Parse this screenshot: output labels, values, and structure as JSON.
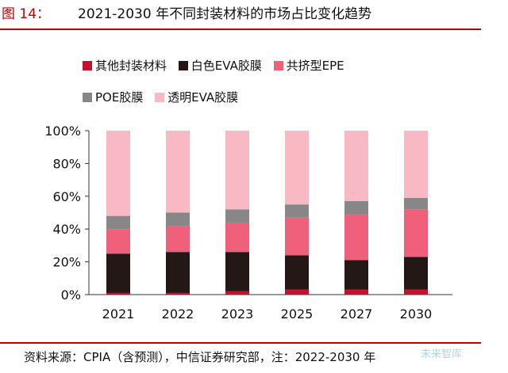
{
  "header": {
    "figure_label": "图 14：",
    "title": "2021-2030 年不同封装材料的市场占比变化趋势"
  },
  "footer": {
    "source": "资料来源：CPIA（含预测），中信证券研究部，注：2022-2030 年",
    "watermark": "未来智库"
  },
  "chart_data": {
    "type": "bar",
    "stacked": true,
    "title": "2021-2030 年不同封装材料的市场占比变化趋势",
    "categories": [
      "2021",
      "2022",
      "2023",
      "2025",
      "2027",
      "2030"
    ],
    "ylim": [
      0,
      100
    ],
    "yticks": [
      "0%",
      "20%",
      "40%",
      "60%",
      "80%",
      "100%"
    ],
    "grid": false,
    "legend_position": "top",
    "series": [
      {
        "name": "其他封装材料",
        "color": "#c8102e",
        "values": [
          1,
          1,
          2,
          3,
          3,
          3
        ]
      },
      {
        "name": "白色EVA胶膜",
        "color": "#231815",
        "values": [
          24,
          25,
          24,
          21,
          18,
          20
        ]
      },
      {
        "name": "共挤型EPE",
        "color": "#f0607a",
        "values": [
          15,
          16,
          18,
          23,
          28,
          29
        ]
      },
      {
        "name": "POE胶膜",
        "color": "#878787",
        "values": [
          8,
          8,
          8,
          8,
          8,
          7
        ]
      },
      {
        "name": "透明EVA胶膜",
        "color": "#f8b8c4",
        "values": [
          52,
          50,
          48,
          45,
          43,
          41
        ]
      }
    ]
  }
}
